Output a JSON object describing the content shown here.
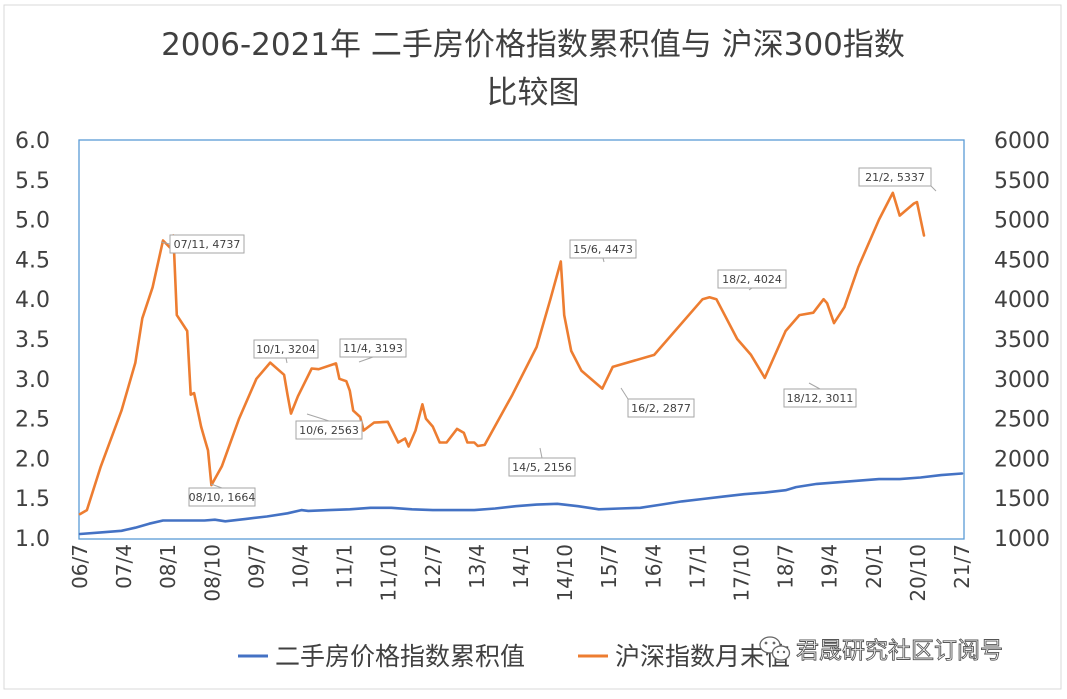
{
  "chart_data": {
    "type": "line",
    "title_line1": "2006-2021年 二手房价格指数累积值与 沪深300指数",
    "title_line2": "比较图",
    "ylim_left": [
      1.0,
      6.0
    ],
    "ylim_right": [
      1000,
      6000
    ],
    "left_ticks": [
      "1.0",
      "1.5",
      "2.0",
      "2.5",
      "3.0",
      "3.5",
      "4.0",
      "4.5",
      "5.0",
      "5.5",
      "6.0"
    ],
    "right_ticks": [
      "1000",
      "1500",
      "2000",
      "2500",
      "3000",
      "3500",
      "4000",
      "4500",
      "5000",
      "5500",
      "6000"
    ],
    "x_ticks": [
      "06/7",
      "07/4",
      "08/1",
      "08/10",
      "09/7",
      "10/4",
      "11/1",
      "11/10",
      "12/7",
      "13/4",
      "14/1",
      "14/10",
      "15/7",
      "16/4",
      "17/1",
      "17/10",
      "18/7",
      "19/4",
      "20/1",
      "20/10",
      "21/7"
    ],
    "colors": {
      "series1": "#4472C4",
      "series2": "#ED7D31",
      "axis": "#5B9BD5",
      "text": "#404040"
    },
    "series": [
      {
        "name": "二手房价格指数累积值",
        "axis": "left",
        "points": [
          [
            0,
            1.05
          ],
          [
            6,
            1.07
          ],
          [
            12,
            1.09
          ],
          [
            16,
            1.13
          ],
          [
            20,
            1.18
          ],
          [
            24,
            1.22
          ],
          [
            30,
            1.22
          ],
          [
            36,
            1.22
          ],
          [
            39,
            1.23
          ],
          [
            42,
            1.21
          ],
          [
            48,
            1.24
          ],
          [
            54,
            1.27
          ],
          [
            60,
            1.31
          ],
          [
            64,
            1.35
          ],
          [
            66,
            1.34
          ],
          [
            72,
            1.35
          ],
          [
            78,
            1.36
          ],
          [
            84,
            1.38
          ],
          [
            90,
            1.38
          ],
          [
            96,
            1.36
          ],
          [
            102,
            1.35
          ],
          [
            108,
            1.35
          ],
          [
            114,
            1.35
          ],
          [
            120,
            1.37
          ],
          [
            126,
            1.4
          ],
          [
            132,
            1.42
          ],
          [
            138,
            1.43
          ],
          [
            144,
            1.4
          ],
          [
            150,
            1.36
          ],
          [
            156,
            1.37
          ],
          [
            162,
            1.38
          ],
          [
            168,
            1.42
          ],
          [
            174,
            1.46
          ],
          [
            180,
            1.49
          ],
          [
            186,
            1.52
          ],
          [
            192,
            1.55
          ],
          [
            198,
            1.57
          ],
          [
            204,
            1.6
          ],
          [
            207,
            1.64
          ],
          [
            213,
            1.68
          ],
          [
            219,
            1.7
          ],
          [
            225,
            1.72
          ],
          [
            231,
            1.74
          ],
          [
            237,
            1.74
          ],
          [
            243,
            1.76
          ],
          [
            249,
            1.79
          ],
          [
            255,
            1.81
          ]
        ]
      },
      {
        "name": "沪深指数月末值",
        "axis": "right",
        "points": [
          [
            0,
            1300
          ],
          [
            2,
            1350
          ],
          [
            6,
            1900
          ],
          [
            12,
            2600
          ],
          [
            16,
            3200
          ],
          [
            18,
            3760
          ],
          [
            21,
            4150
          ],
          [
            24,
            4737
          ],
          [
            26,
            4650
          ],
          [
            27,
            4800
          ],
          [
            28,
            3800
          ],
          [
            31,
            3600
          ],
          [
            32,
            2800
          ],
          [
            33,
            2820
          ],
          [
            35,
            2400
          ],
          [
            36,
            2250
          ],
          [
            37,
            2100
          ],
          [
            38,
            1664
          ],
          [
            41,
            1900
          ],
          [
            46,
            2500
          ],
          [
            51,
            3000
          ],
          [
            55,
            3204
          ],
          [
            59,
            3050
          ],
          [
            60,
            2800
          ],
          [
            61,
            2563
          ],
          [
            63,
            2780
          ],
          [
            67,
            3130
          ],
          [
            69,
            3120
          ],
          [
            74,
            3193
          ],
          [
            75,
            3000
          ],
          [
            77,
            2970
          ],
          [
            78,
            2850
          ],
          [
            79,
            2600
          ],
          [
            81,
            2520
          ],
          [
            82,
            2350
          ],
          [
            85,
            2450
          ],
          [
            89,
            2460
          ],
          [
            92,
            2200
          ],
          [
            94,
            2250
          ],
          [
            95,
            2150
          ],
          [
            97,
            2350
          ],
          [
            99,
            2680
          ],
          [
            100,
            2500
          ],
          [
            102,
            2400
          ],
          [
            104,
            2200
          ],
          [
            106,
            2200
          ],
          [
            109,
            2370
          ],
          [
            111,
            2320
          ],
          [
            112,
            2200
          ],
          [
            114,
            2200
          ],
          [
            115,
            2156
          ],
          [
            117,
            2170
          ],
          [
            125,
            2800
          ],
          [
            132,
            3400
          ],
          [
            136,
            4000
          ],
          [
            139,
            4473
          ],
          [
            140,
            3800
          ],
          [
            142,
            3350
          ],
          [
            145,
            3100
          ],
          [
            151,
            2877
          ],
          [
            154,
            3150
          ],
          [
            166,
            3300
          ],
          [
            180,
            4000
          ],
          [
            182,
            4024
          ],
          [
            184,
            4000
          ],
          [
            190,
            3500
          ],
          [
            194,
            3300
          ],
          [
            198,
            3011
          ],
          [
            204,
            3600
          ],
          [
            208,
            3800
          ],
          [
            212,
            3830
          ],
          [
            215,
            4000
          ],
          [
            216,
            3950
          ],
          [
            218,
            3700
          ],
          [
            221,
            3900
          ],
          [
            225,
            4400
          ],
          [
            231,
            5000
          ],
          [
            235,
            5337
          ],
          [
            237,
            5050
          ],
          [
            241,
            5200
          ],
          [
            242,
            5220
          ],
          [
            244,
            4800
          ]
        ]
      }
    ],
    "annotations": [
      {
        "label": "07/11, 4737"
      },
      {
        "label": "08/10, 1664"
      },
      {
        "label": "10/1, 3204"
      },
      {
        "label": "10/6, 2563"
      },
      {
        "label": "11/4, 3193"
      },
      {
        "label": "14/5, 2156"
      },
      {
        "label": "15/6, 4473"
      },
      {
        "label": "16/2, 2877"
      },
      {
        "label": "18/2, 4024"
      },
      {
        "label": "18/12, 3011"
      },
      {
        "label": "21/2, 5337"
      }
    ],
    "watermark": "君晟研究社区订阅号"
  }
}
